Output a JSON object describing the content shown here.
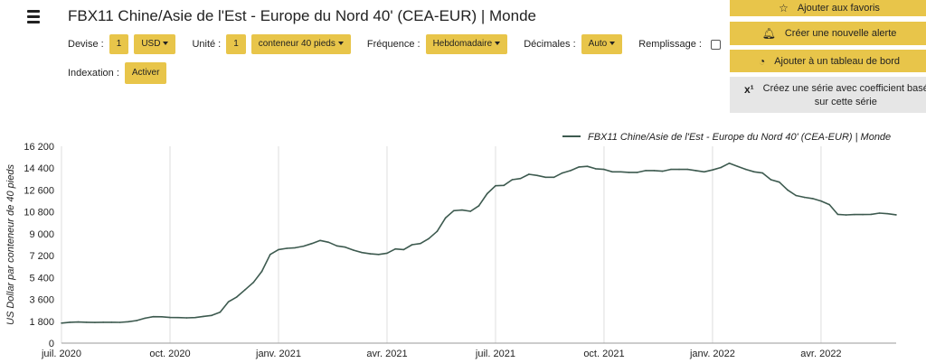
{
  "header": {
    "title": "FBX11 Chine/Asie de l'Est - Europe du Nord 40' (CEA-EUR) | Monde"
  },
  "controls": {
    "devise_label": "Devise :",
    "devise_qty": "1",
    "devise_value": "USD",
    "unite_label": "Unité :",
    "unite_qty": "1",
    "unite_value": "conteneur 40 pieds",
    "frequence_label": "Fréquence :",
    "frequence_value": "Hebdomadaire",
    "decimales_label": "Décimales :",
    "decimales_value": "Auto",
    "remplissage_label": "Remplissage :",
    "remplissage_checked": false,
    "indexation_label": "Indexation :",
    "indexation_button": "Activer"
  },
  "side_actions": {
    "favoris": "Ajouter aux favoris",
    "alerte": "Créer une nouvelle alerte",
    "tableau": "Ajouter à un tableau de bord",
    "serie_line1": "Créez une série avec coefficient basé",
    "serie_line2": "sur cette série"
  },
  "colors": {
    "accent": "#e8c54a",
    "line": "#3d5a4f",
    "grey_button": "#e6e6e6"
  },
  "chart_data": {
    "type": "line",
    "ylabel": "US Dollar par conteneur de 40 pieds",
    "xlabel": "",
    "ylim": [
      0,
      16200
    ],
    "yticks": [
      0,
      1800,
      3600,
      5400,
      7200,
      9000,
      10800,
      12600,
      14400,
      16200
    ],
    "ytick_labels": [
      "0",
      "1 800",
      "3 600",
      "5 400",
      "7 200",
      "9 000",
      "10 800",
      "12 600",
      "14 400",
      "16 200"
    ],
    "xticks": [
      {
        "label": "juil. 2020",
        "week": 0
      },
      {
        "label": "oct. 2020",
        "week": 13
      },
      {
        "label": "janv. 2021",
        "week": 26
      },
      {
        "label": "avr. 2021",
        "week": 39
      },
      {
        "label": "juil. 2021",
        "week": 52
      },
      {
        "label": "oct. 2021",
        "week": 65
      },
      {
        "label": "janv. 2022",
        "week": 78
      },
      {
        "label": "avr. 2022",
        "week": 91
      }
    ],
    "legend": "top-right",
    "grid": "vertical",
    "series": [
      {
        "name": "FBX11 Chine/Asie de l'Est - Europe du Nord 40' (CEA-EUR) | Monde",
        "values": [
          1650,
          1720,
          1740,
          1720,
          1700,
          1720,
          1720,
          1710,
          1760,
          1860,
          2050,
          2180,
          2170,
          2110,
          2100,
          2080,
          2100,
          2200,
          2280,
          2550,
          3400,
          3800,
          4400,
          5000,
          5900,
          7300,
          7700,
          7800,
          7850,
          7980,
          8200,
          8450,
          8300,
          8000,
          7900,
          7650,
          7450,
          7350,
          7300,
          7400,
          7750,
          7700,
          8100,
          8200,
          8600,
          9200,
          10300,
          10900,
          10950,
          10850,
          11300,
          12300,
          12950,
          12980,
          13450,
          13550,
          13900,
          13800,
          13650,
          13650,
          14000,
          14200,
          14500,
          14550,
          14350,
          14300,
          14100,
          14100,
          14050,
          14050,
          14200,
          14200,
          14150,
          14300,
          14300,
          14300,
          14200,
          14100,
          14250,
          14450,
          14800,
          14550,
          14300,
          14100,
          14000,
          13450,
          13250,
          12600,
          12150,
          12000,
          11900,
          11700,
          11400,
          10600,
          10550,
          10580,
          10580,
          10600,
          10700,
          10650,
          10560
        ]
      }
    ]
  }
}
